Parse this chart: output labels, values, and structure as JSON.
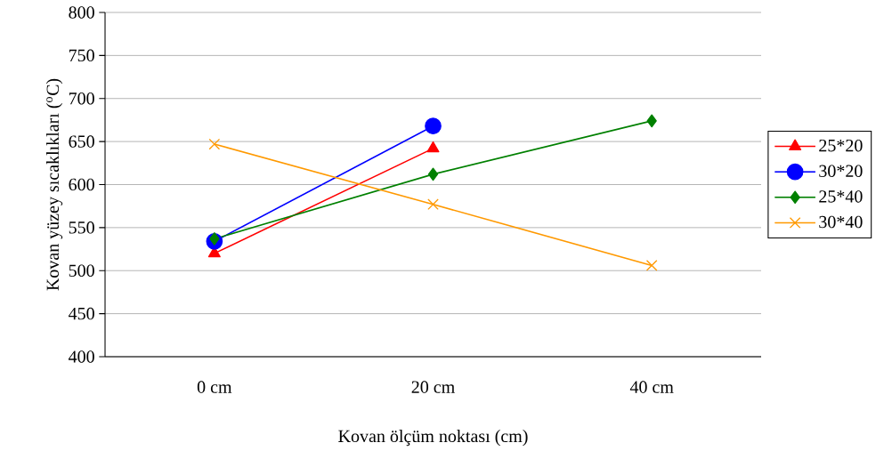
{
  "chart_data": {
    "type": "line",
    "xlabel": "Kovan ölçüm noktası (cm)",
    "ylabel": "Kovan yüzey sıcaklıkları ($^{o}$C)",
    "categories": [
      "0 cm",
      "20 cm",
      "40 cm"
    ],
    "ylim": [
      400,
      800
    ],
    "yticks": [
      400,
      450,
      500,
      550,
      600,
      650,
      700,
      750,
      800
    ],
    "grid": "y",
    "legend": "right",
    "series": [
      {
        "name": "25*20",
        "color": "#ff0000",
        "marker": "triangle",
        "values": [
          520,
          642,
          null
        ]
      },
      {
        "name": "30*20",
        "color": "#0000ff",
        "marker": "circle",
        "values": [
          534,
          668,
          null
        ]
      },
      {
        "name": "25*40",
        "color": "#008000",
        "marker": "diamond",
        "values": [
          537,
          612,
          674
        ]
      },
      {
        "name": "30*40",
        "color": "#ff9900",
        "marker": "cross",
        "values": [
          647,
          577,
          506
        ]
      }
    ]
  }
}
